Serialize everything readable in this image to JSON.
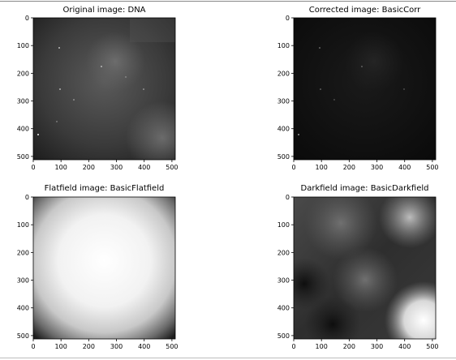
{
  "panels": [
    {
      "id": "original",
      "title": "Original image: DNA",
      "x_ticks": [
        "0",
        "100",
        "200",
        "300",
        "400",
        "500"
      ],
      "y_ticks": [
        "0",
        "100",
        "200",
        "300",
        "400",
        "500"
      ]
    },
    {
      "id": "corrected",
      "title": "Corrected image: BasicCorr",
      "x_ticks": [
        "0",
        "100",
        "200",
        "300",
        "400",
        "500"
      ],
      "y_ticks": [
        "0",
        "100",
        "200",
        "300",
        "400",
        "500"
      ]
    },
    {
      "id": "flatfield",
      "title": "Flatfield image: BasicFlatfield",
      "x_ticks": [
        "0",
        "100",
        "200",
        "300",
        "400",
        "500"
      ],
      "y_ticks": [
        "0",
        "100",
        "200",
        "300",
        "400",
        "500"
      ]
    },
    {
      "id": "darkfield",
      "title": "Darkfield image: BasicDarkfield",
      "x_ticks": [
        "0",
        "100",
        "200",
        "300",
        "400",
        "500"
      ],
      "y_ticks": [
        "0",
        "100",
        "200",
        "300",
        "400",
        "500"
      ]
    }
  ]
}
